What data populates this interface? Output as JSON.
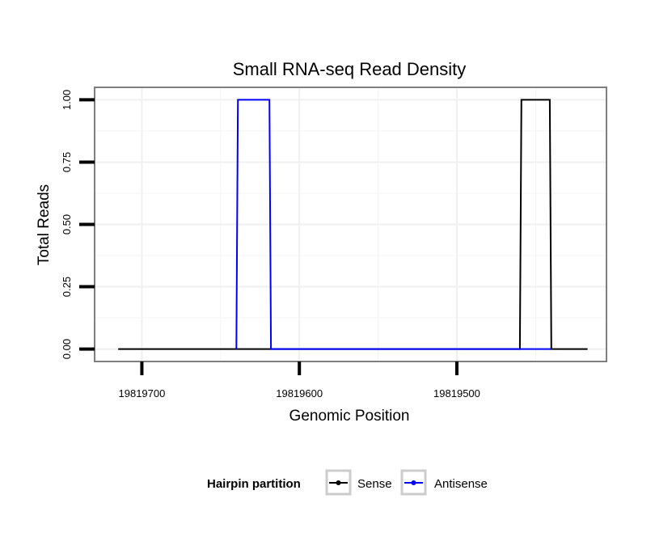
{
  "chart_data": {
    "type": "line",
    "title": "Small RNA-seq Read Density",
    "xlabel": "Genomic Position",
    "ylabel": "Total Reads",
    "x_reversed": true,
    "xlim": [
      19819730,
      19819405
    ],
    "ylim": [
      -0.05,
      1.05
    ],
    "x_ticks": [
      19819700,
      19819600,
      19819500
    ],
    "x_tick_labels": [
      "19819700",
      "19819600",
      "19819500"
    ],
    "y_ticks": [
      0,
      0.25,
      0.5,
      0.75,
      1.0
    ],
    "y_tick_labels": [
      "0.00",
      "0.25",
      "0.50",
      "0.75",
      "1.00"
    ],
    "grid": true,
    "legend": {
      "title": "Hairpin partition",
      "position": "bottom",
      "entries": [
        "Sense",
        "Antisense"
      ]
    },
    "series": [
      {
        "name": "Sense",
        "color": "#000000",
        "x": [
          19819715,
          19819460,
          19819459,
          19819441,
          19819440,
          19819417
        ],
        "y": [
          0,
          0,
          1,
          1,
          0,
          0
        ]
      },
      {
        "name": "Antisense",
        "color": "#0000ff",
        "x": [
          19819640,
          19819639,
          19819619,
          19819618,
          19819460,
          19819459,
          19819441,
          19819440
        ],
        "y": [
          0,
          1,
          1,
          0,
          0,
          0,
          0,
          0
        ]
      }
    ]
  }
}
